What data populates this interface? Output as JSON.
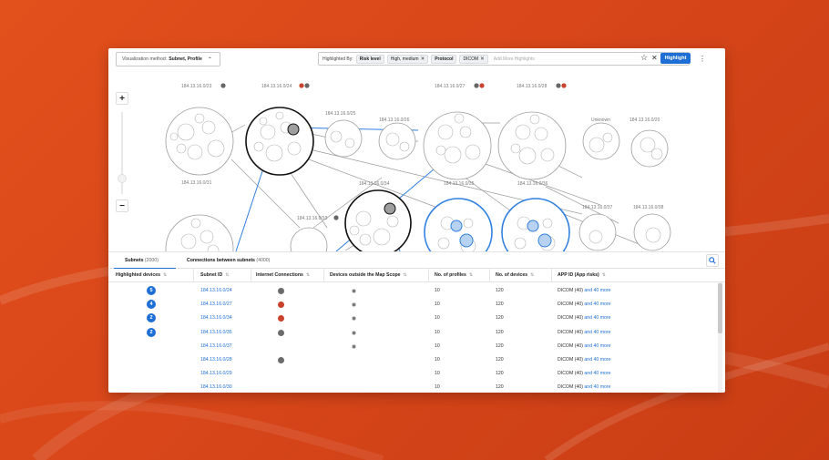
{
  "colors": {
    "accent": "#1d6fd6",
    "background_orange": "#d8461a",
    "alert_red": "#c9432c"
  },
  "toolbar": {
    "viz_label": "Visualization method:",
    "viz_value": "Subnet, Profile",
    "highlighted_by_label": "Highlighted By:",
    "chips": [
      {
        "text": "Risk level",
        "bold": true
      },
      {
        "text": "High, medium",
        "bold": false,
        "removable": true
      },
      {
        "text": "Protocol",
        "bold": true
      },
      {
        "text": "DICOM",
        "bold": false,
        "removable": true
      }
    ],
    "add_placeholder": "Add More Highlights",
    "highlight_button": "Highlight",
    "icons": [
      "star-icon",
      "clear-icon",
      "info-icon"
    ]
  },
  "map": {
    "zoom_in": "+",
    "zoom_out": "−",
    "subnet_labels": [
      "184.13.16.0/23",
      "184.13.16.0/24",
      "184.13.16.0/25",
      "184.13.16.0/26",
      "184.13.16.0/27",
      "184.13.16.0/28",
      "Unknown",
      "184.13.16.0/20",
      "184.13.16.0/31",
      "184.13.16.0/34",
      "184.13.16.0/33",
      "184.13.16.0/35",
      "184.13.16.0/36",
      "184.13.16.0/37",
      "184.13.16.0/38"
    ]
  },
  "tabs": [
    {
      "label": "Subnets",
      "count": "(2000)"
    },
    {
      "label": "Connections between subnets",
      "count": "(4000)"
    }
  ],
  "table": {
    "headers": [
      "Highlighted devices",
      "Subnet ID",
      "Internet Connections",
      "Devices outside the Map Scope",
      "No. of profiles",
      "No. of devices",
      "APP ID (App risks)"
    ],
    "rows": [
      {
        "highlighted": "5",
        "subnet": "184.13.16.0/24",
        "internet": "star",
        "outside": true,
        "profiles": "10",
        "devices": "120",
        "app": "DICOM (40)",
        "more": "and 40 more"
      },
      {
        "highlighted": "4",
        "subnet": "184.13.16.0/27",
        "internet": "red",
        "outside": true,
        "profiles": "10",
        "devices": "120",
        "app": "DICOM (40)",
        "more": "and 40 more"
      },
      {
        "highlighted": "2",
        "subnet": "184.13.16.0/34",
        "internet": "red",
        "outside": true,
        "profiles": "10",
        "devices": "120",
        "app": "DICOM (40)",
        "more": "and 40 more"
      },
      {
        "highlighted": "2",
        "subnet": "184.13.16.0/35",
        "internet": "star",
        "outside": true,
        "profiles": "10",
        "devices": "120",
        "app": "DICOM (40)",
        "more": "and 40 more"
      },
      {
        "highlighted": "",
        "subnet": "184.13.16.0/37",
        "internet": "",
        "outside": true,
        "profiles": "10",
        "devices": "120",
        "app": "DICOM (40)",
        "more": "and 40 more"
      },
      {
        "highlighted": "",
        "subnet": "184.13.16.0/28",
        "internet": "star",
        "outside": false,
        "profiles": "10",
        "devices": "120",
        "app": "DICOM (40)",
        "more": "and 40 more"
      },
      {
        "highlighted": "",
        "subnet": "184.13.16.0/29",
        "internet": "",
        "outside": false,
        "profiles": "10",
        "devices": "120",
        "app": "DICOM (40)",
        "more": "and 40 more"
      },
      {
        "highlighted": "",
        "subnet": "184.13.16.0/30",
        "internet": "",
        "outside": false,
        "profiles": "10",
        "devices": "120",
        "app": "DICOM (40)",
        "more": "and 40 more"
      }
    ]
  }
}
